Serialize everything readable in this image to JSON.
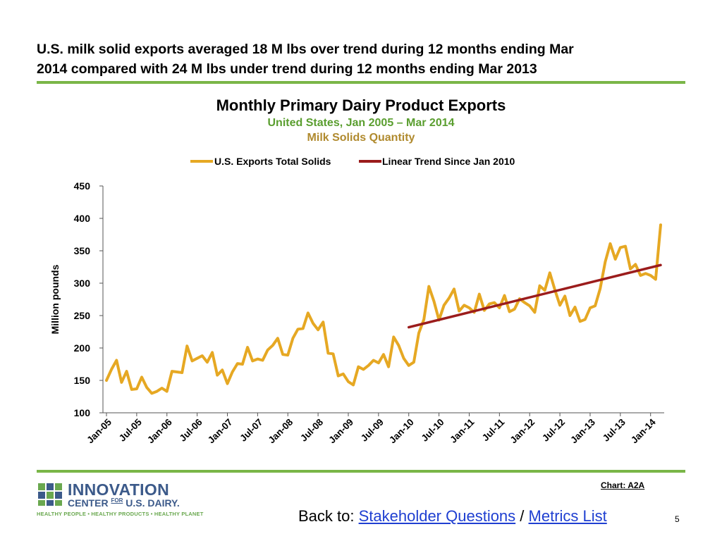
{
  "slide": {
    "headline_line1": "U.S. milk solid exports averaged 18 M lbs over trend during 12 months ending Mar",
    "headline_line2": "2014 compared with 24 M lbs under trend during 12 months ending Mar 2013",
    "chart_ref": "Chart: A2A",
    "page_number": "5",
    "colors": {
      "rule": "#7ab648",
      "link": "#1f3fd1"
    }
  },
  "nav": {
    "prefix": "Back to: ",
    "link1": "Stakeholder Questions",
    "separator": " / ",
    "link2": "Metrics List"
  },
  "logo": {
    "line1": "INNOVATION",
    "line2_a": "CENTER",
    "line2_for": "FOR",
    "line2_b": "U.S. DAIRY.",
    "tagline": "HEALTHY PEOPLE • HEALTHY PRODUCTS • HEALTHY PLANET"
  },
  "chart_data": {
    "type": "line",
    "title": "Monthly Primary Dairy Product Exports",
    "subtitle": "United States, Jan 2005 – Mar 2014",
    "subtitle2": "Milk Solids Quantity",
    "ylabel": "Million pounds",
    "xlabel": "",
    "ylim": [
      100,
      450
    ],
    "yticks": [
      100,
      150,
      200,
      250,
      300,
      350,
      400,
      450
    ],
    "x_tick_labels": [
      "Jan-05",
      "Jul-05",
      "Jan-06",
      "Jul-06",
      "Jan-07",
      "Jul-07",
      "Jan-08",
      "Jul-08",
      "Jan-09",
      "Jul-09",
      "Jan-10",
      "Jul-10",
      "Jan-11",
      "Jul-11",
      "Jan-12",
      "Jul-12",
      "Jan-13",
      "Jul-13",
      "Jan-14"
    ],
    "x_start": "Jan-05",
    "legend_position": "top",
    "grid": false,
    "series": [
      {
        "name": "U.S. Exports Total Solids",
        "color": "#e6a823",
        "values": [
          150,
          167,
          181,
          147,
          164,
          136,
          137,
          155,
          139,
          130,
          133,
          138,
          133,
          164,
          163,
          162,
          203,
          180,
          184,
          188,
          178,
          193,
          158,
          166,
          145,
          163,
          176,
          175,
          201,
          180,
          183,
          181,
          197,
          204,
          215,
          190,
          189,
          215,
          229,
          230,
          254,
          238,
          228,
          240,
          192,
          191,
          157,
          160,
          148,
          143,
          171,
          167,
          173,
          181,
          177,
          190,
          171,
          217,
          204,
          184,
          173,
          178,
          223,
          244,
          295,
          272,
          243,
          266,
          277,
          291,
          257,
          266,
          262,
          255,
          283,
          258,
          268,
          270,
          262,
          281,
          256,
          260,
          276,
          270,
          265,
          255,
          296,
          289,
          316,
          290,
          266,
          280,
          250,
          263,
          241,
          244,
          262,
          265,
          292,
          333,
          361,
          337,
          355,
          357,
          322,
          329,
          312,
          315,
          312,
          306,
          390
        ],
        "stroke": 4
      },
      {
        "name": "Linear Trend Since Jan 2010",
        "color": "#9b1c1c",
        "x_range": [
          "Jan-10",
          "Mar-14"
        ],
        "values_endpoints": [
          232,
          328
        ],
        "stroke": 3.5
      }
    ]
  }
}
